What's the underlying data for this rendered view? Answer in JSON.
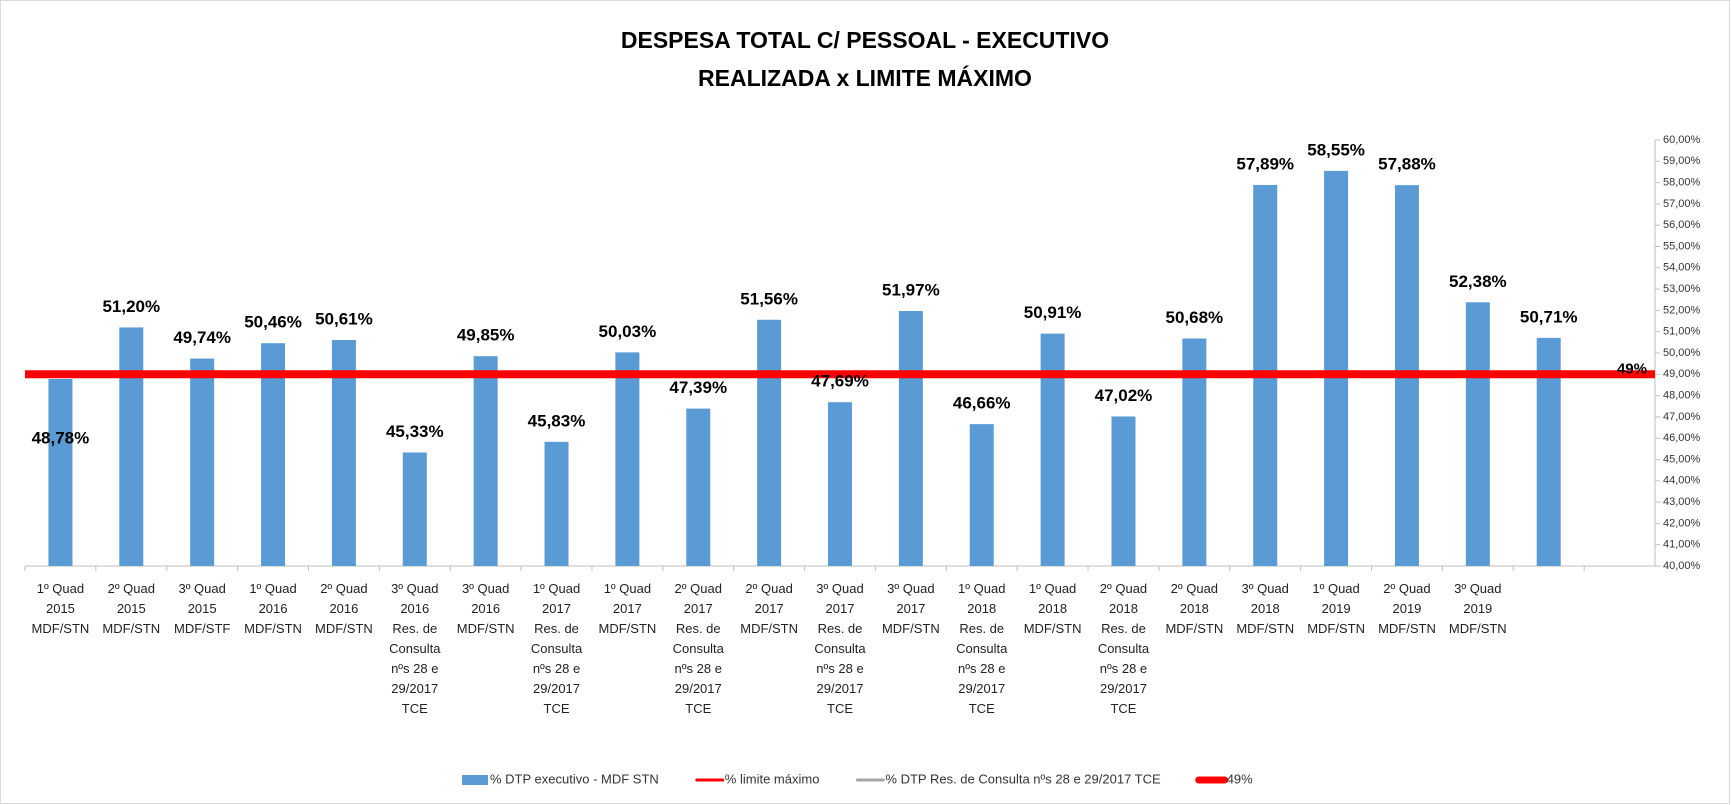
{
  "chart_data": {
    "type": "bar",
    "title": "DESPESA TOTAL C/ PESSOAL - EXECUTIVO",
    "subtitle": "REALIZADA x LIMITE MÁXIMO",
    "categories": [
      "1º Quad\n2015\nMDF/STN",
      "2º Quad\n2015\nMDF/STN",
      "3º Quad\n2015\nMDF/STF",
      "1º Quad\n2016\nMDF/STN",
      "2º Quad\n2016\nMDF/STN",
      "3º Quad\n2016\nRes. de\nConsulta\nnºs 28 e\n29/2017\nTCE",
      "3º Quad\n2016\nMDF/STN",
      "1º Quad\n2017\nRes. de\nConsulta\nnºs 28 e\n29/2017\nTCE",
      "1º Quad\n2017\nMDF/STN",
      "2º Quad\n2017\nRes. de\nConsulta\nnºs 28 e\n29/2017\nTCE",
      "2º Quad\n2017\nMDF/STN",
      "3º Quad\n2017\nRes. de\nConsulta\nnºs 28 e\n29/2017\nTCE",
      "3º Quad\n2017\nMDF/STN",
      "1º Quad\n2018\nRes. de\nConsulta\nnºs 28 e\n29/2017\nTCE",
      "1º Quad\n2018\nMDF/STN",
      "2º Quad\n2018\nRes. de\nConsulta\nnºs 28 e\n29/2017\nTCE",
      "2º Quad\n2018\nMDF/STN",
      "3º Quad\n2018\nMDF/STN",
      "1º Quad\n2019\nMDF/STN",
      "2º Quad\n2019\nMDF/STN",
      "3º Quad\n2019\nMDF/STN",
      null,
      null
    ],
    "series": [
      {
        "name": "% DTP executivo - MDF STN",
        "color": "#5b9bd5",
        "kind": "bar",
        "values": [
          48.78,
          51.2,
          49.74,
          50.46,
          50.61,
          45.33,
          49.85,
          45.83,
          50.03,
          47.39,
          51.56,
          47.69,
          51.97,
          46.66,
          50.91,
          47.02,
          50.68,
          57.89,
          58.55,
          57.88,
          52.38,
          50.71,
          null
        ],
        "value_labels": [
          "48,78%",
          "51,20%",
          "49,74%",
          "50,46%",
          "50,61%",
          "45,33%",
          "49,85%",
          "45,83%",
          "50,03%",
          "47,39%",
          "51,56%",
          "47,69%",
          "51,97%",
          "46,66%",
          "50,91%",
          "47,02%",
          "50,68%",
          "57,89%",
          "58,55%",
          "57,88%",
          "52,38%",
          "50,71%",
          null
        ]
      },
      {
        "name": "% limite máximo",
        "color": "#ff0000",
        "kind": "line"
      },
      {
        "name": "% DTP Res. de Consulta nºs 28 e 29/2017 TCE",
        "color": "#a5a5a5",
        "kind": "line"
      },
      {
        "name": "49%",
        "color": "#ff0000",
        "kind": "thickline",
        "values": [
          49,
          49,
          49,
          49,
          49,
          49,
          49,
          49,
          49,
          49,
          49,
          49,
          49,
          49,
          49,
          49,
          49,
          49,
          49,
          49,
          49,
          49,
          49
        ]
      }
    ],
    "ylim": [
      40,
      60
    ],
    "yticks": [
      {
        "value": 40,
        "label": "40,00%"
      },
      {
        "value": 41,
        "label": "41,00%"
      },
      {
        "value": 42,
        "label": "42,00%"
      },
      {
        "value": 43,
        "label": "43,00%"
      },
      {
        "value": 44,
        "label": "44,00%"
      },
      {
        "value": 45,
        "label": "45,00%"
      },
      {
        "value": 46,
        "label": "46,00%"
      },
      {
        "value": 47,
        "label": "47,00%"
      },
      {
        "value": 48,
        "label": "48,00%"
      },
      {
        "value": 49,
        "label": "49,00%"
      },
      {
        "value": 50,
        "label": "50,00%"
      },
      {
        "value": 51,
        "label": "51,00%"
      },
      {
        "value": 52,
        "label": "52,00%"
      },
      {
        "value": 53,
        "label": "53,00%"
      },
      {
        "value": 54,
        "label": "54,00%"
      },
      {
        "value": 55,
        "label": "55,00%"
      },
      {
        "value": 56,
        "label": "56,00%"
      },
      {
        "value": 57,
        "label": "57,00%"
      },
      {
        "value": 58,
        "label": "58,00%"
      },
      {
        "value": 59,
        "label": "59,00%"
      },
      {
        "value": 60,
        "label": "60,00%"
      }
    ],
    "y_axis_side": "right",
    "legend": "bottom"
  }
}
